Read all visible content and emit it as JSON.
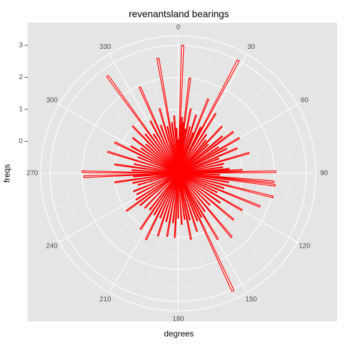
{
  "chart_data": {
    "type": "bar",
    "coord": "polar",
    "title": "revenantsland bearings",
    "xlabel": "degrees",
    "ylabel": "freqs",
    "angle_range": [
      0,
      360
    ],
    "angle_ticks": [
      "0",
      "30",
      "60",
      "90",
      "120",
      "150",
      "180",
      "210",
      "240",
      "270",
      "300",
      "330"
    ],
    "radial_ticks": [
      "0",
      "1",
      "2",
      "3"
    ],
    "radial_tick_values": [
      0,
      1,
      2,
      3
    ],
    "radial_range": [
      -1,
      3.3
    ],
    "grid": true,
    "bar_style": {
      "stroke": "#ff0000",
      "fill": "#ffffff",
      "bar_width_degrees": 1
    },
    "bars": [
      {
        "angle": 0,
        "value": 0.05
      },
      {
        "angle": 2,
        "value": 3.0
      },
      {
        "angle": 4,
        "value": 0.75
      },
      {
        "angle": 6,
        "value": 0.6
      },
      {
        "angle": 7,
        "value": 2.0
      },
      {
        "angle": 9,
        "value": 0.4
      },
      {
        "angle": 11,
        "value": 1.05
      },
      {
        "angle": 14,
        "value": 0.5
      },
      {
        "angle": 17,
        "value": 0.9
      },
      {
        "angle": 20,
        "value": 0.35
      },
      {
        "angle": 22,
        "value": 1.5
      },
      {
        "angle": 26,
        "value": 0.6
      },
      {
        "angle": 28,
        "value": 3.0
      },
      {
        "angle": 32,
        "value": 1.2
      },
      {
        "angle": 36,
        "value": 0.5
      },
      {
        "angle": 40,
        "value": 0.35
      },
      {
        "angle": 43,
        "value": 1.0
      },
      {
        "angle": 46,
        "value": 0.3
      },
      {
        "angle": 50,
        "value": 0.8
      },
      {
        "angle": 53,
        "value": 1.15
      },
      {
        "angle": 57,
        "value": 0.5
      },
      {
        "angle": 60,
        "value": 1.2
      },
      {
        "angle": 63,
        "value": 0.7
      },
      {
        "angle": 67,
        "value": 1.0
      },
      {
        "angle": 70,
        "value": 0.35
      },
      {
        "angle": 74,
        "value": 1.3
      },
      {
        "angle": 78,
        "value": 0.45
      },
      {
        "angle": 82,
        "value": 0.4
      },
      {
        "angle": 85,
        "value": 0.6
      },
      {
        "angle": 87,
        "value": 1.0
      },
      {
        "angle": 89,
        "value": 2.05
      },
      {
        "angle": 92,
        "value": 0.3
      },
      {
        "angle": 95,
        "value": 2.0
      },
      {
        "angle": 97,
        "value": 2.05
      },
      {
        "angle": 100,
        "value": 0.6
      },
      {
        "angle": 104,
        "value": 2.05
      },
      {
        "angle": 108,
        "value": 0.5
      },
      {
        "angle": 112,
        "value": 1.75
      },
      {
        "angle": 116,
        "value": 0.35
      },
      {
        "angle": 120,
        "value": 1.3
      },
      {
        "angle": 125,
        "value": 0.6
      },
      {
        "angle": 130,
        "value": 1.25
      },
      {
        "angle": 135,
        "value": 0.4
      },
      {
        "angle": 140,
        "value": 1.6
      },
      {
        "angle": 145,
        "value": 0.45
      },
      {
        "angle": 149,
        "value": 1.4
      },
      {
        "angle": 152,
        "value": 0.55
      },
      {
        "angle": 155,
        "value": 3.05
      },
      {
        "angle": 158,
        "value": 0.6
      },
      {
        "angle": 162,
        "value": 0.9
      },
      {
        "angle": 166,
        "value": 0.5
      },
      {
        "angle": 169,
        "value": 1.1
      },
      {
        "angle": 172,
        "value": 0.45
      },
      {
        "angle": 176,
        "value": 0.6
      },
      {
        "angle": 180,
        "value": 0.4
      },
      {
        "angle": 183,
        "value": 1.0
      },
      {
        "angle": 186,
        "value": 0.55
      },
      {
        "angle": 190,
        "value": 1.0
      },
      {
        "angle": 194,
        "value": 0.55
      },
      {
        "angle": 198,
        "value": 1.05
      },
      {
        "angle": 202,
        "value": 0.5
      },
      {
        "angle": 206,
        "value": 1.3
      },
      {
        "angle": 210,
        "value": 0.5
      },
      {
        "angle": 214,
        "value": 1.1
      },
      {
        "angle": 218,
        "value": 0.45
      },
      {
        "angle": 224,
        "value": 0.5
      },
      {
        "angle": 230,
        "value": 0.55
      },
      {
        "angle": 234,
        "value": 1.0
      },
      {
        "angle": 238,
        "value": 0.55
      },
      {
        "angle": 243,
        "value": 0.45
      },
      {
        "angle": 248,
        "value": 0.5
      },
      {
        "angle": 254,
        "value": 0.3
      },
      {
        "angle": 258,
        "value": 0.45
      },
      {
        "angle": 262,
        "value": 1.0
      },
      {
        "angle": 266,
        "value": 0.4
      },
      {
        "angle": 268,
        "value": 1.95
      },
      {
        "angle": 271,
        "value": 2.0
      },
      {
        "angle": 274,
        "value": 0.45
      },
      {
        "angle": 278,
        "value": 1.0
      },
      {
        "angle": 282,
        "value": 0.4
      },
      {
        "angle": 287,
        "value": 1.3
      },
      {
        "angle": 292,
        "value": 0.35
      },
      {
        "angle": 296,
        "value": 1.2
      },
      {
        "angle": 300,
        "value": 0.7
      },
      {
        "angle": 304,
        "value": 0.4
      },
      {
        "angle": 308,
        "value": 0.8
      },
      {
        "angle": 312,
        "value": 0.35
      },
      {
        "angle": 316,
        "value": 1.05
      },
      {
        "angle": 320,
        "value": 0.6
      },
      {
        "angle": 324,
        "value": 2.75
      },
      {
        "angle": 328,
        "value": 0.45
      },
      {
        "angle": 332,
        "value": 0.85
      },
      {
        "angle": 336,
        "value": 1.95
      },
      {
        "angle": 340,
        "value": 0.6
      },
      {
        "angle": 344,
        "value": 1.1
      },
      {
        "angle": 347,
        "value": 0.5
      },
      {
        "angle": 350,
        "value": 2.65
      },
      {
        "angle": 353,
        "value": 0.6
      },
      {
        "angle": 356,
        "value": 0.8
      },
      {
        "angle": 358,
        "value": 0.4
      }
    ]
  }
}
